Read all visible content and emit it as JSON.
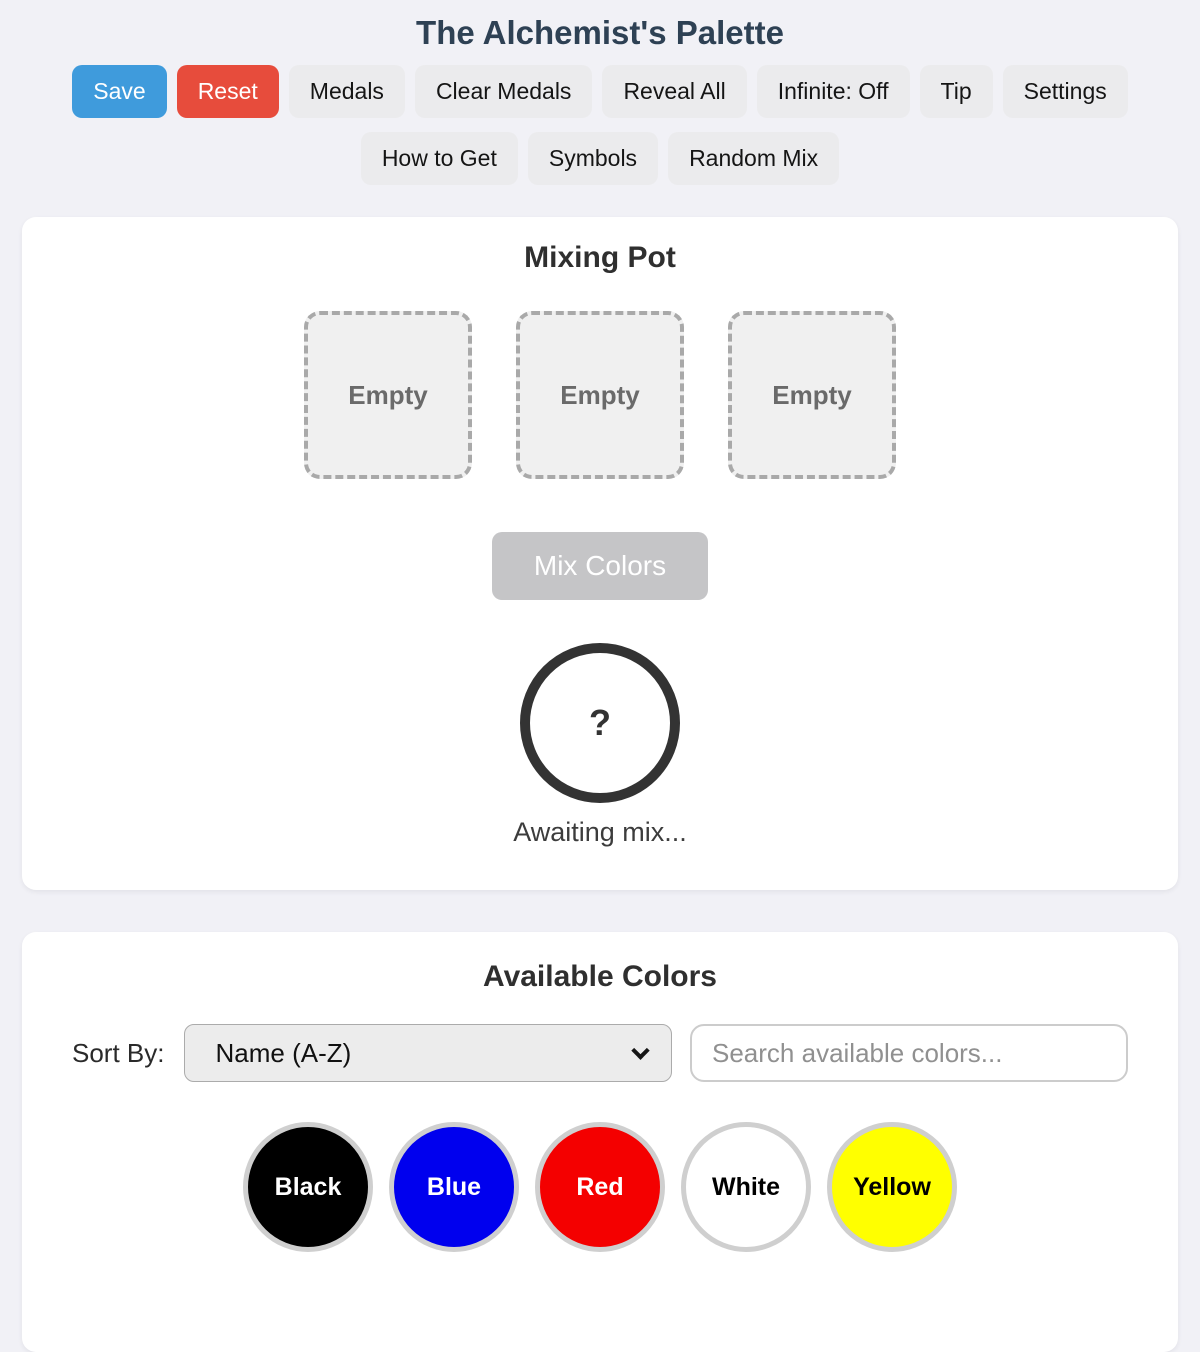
{
  "app": {
    "title": "The Alchemist's Palette"
  },
  "toolbar": {
    "row1": [
      {
        "label": "Save"
      },
      {
        "label": "Reset"
      },
      {
        "label": "Medals"
      },
      {
        "label": "Clear Medals"
      },
      {
        "label": "Reveal All"
      },
      {
        "label": "Infinite: Off"
      },
      {
        "label": "Tip"
      },
      {
        "label": "Settings"
      }
    ],
    "row2": [
      {
        "label": "How to Get"
      },
      {
        "label": "Symbols"
      },
      {
        "label": "Random Mix"
      }
    ]
  },
  "mixing_pot": {
    "title": "Mixing Pot",
    "slots": [
      {
        "label": "Empty"
      },
      {
        "label": "Empty"
      },
      {
        "label": "Empty"
      }
    ],
    "mix_button_label": "Mix Colors",
    "result_symbol": "?",
    "status_text": "Awaiting mix..."
  },
  "available_colors": {
    "title": "Available Colors",
    "sort_label": "Sort By:",
    "sort_selected": "Name (A-Z)",
    "search_placeholder": "Search available colors...",
    "colors": [
      {
        "name": "Black",
        "hex": "#000000",
        "text_color": "#ffffff"
      },
      {
        "name": "Blue",
        "hex": "#0000ee",
        "text_color": "#ffffff"
      },
      {
        "name": "Red",
        "hex": "#f40000",
        "text_color": "#ffffff"
      },
      {
        "name": "White",
        "hex": "#ffffff",
        "text_color": "#000000"
      },
      {
        "name": "Yellow",
        "hex": "#ffff00",
        "text_color": "#000000"
      }
    ]
  },
  "theme": {
    "primary_blue": "#3f9bdc",
    "danger_red": "#e74c3c",
    "title_navy": "#2e4154",
    "disabled_gray": "#c5c5c7"
  }
}
